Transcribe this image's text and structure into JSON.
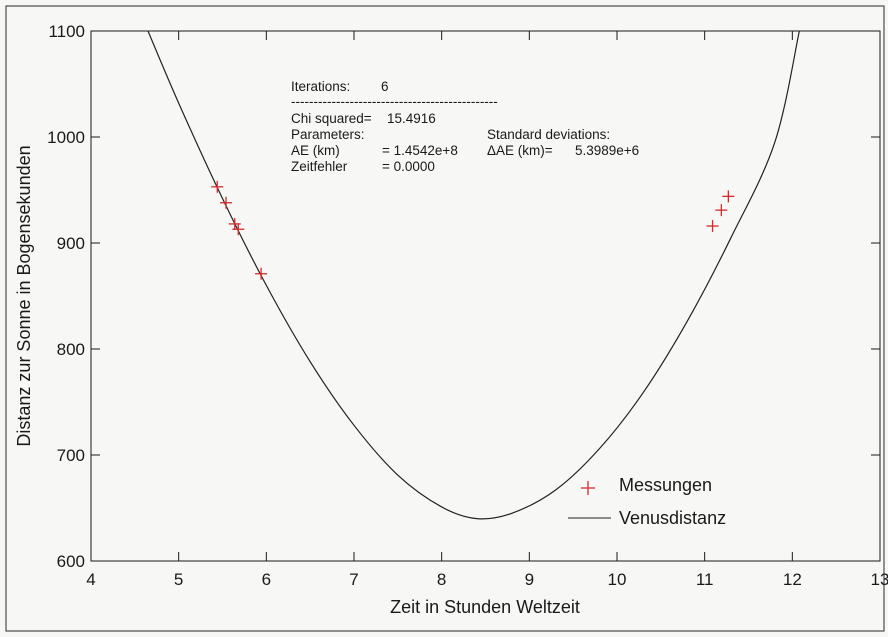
{
  "chart_data": {
    "type": "scatter",
    "xlabel": "Zeit in Stunden Weltzeit",
    "ylabel": "Distanz zur Sonne in Bogensekunden",
    "xlim": [
      4,
      13
    ],
    "ylim": [
      600,
      1100
    ],
    "x_ticks": [
      4,
      5,
      6,
      7,
      8,
      9,
      10,
      11,
      12,
      13
    ],
    "y_ticks": [
      600,
      700,
      800,
      900,
      1000,
      1100
    ],
    "grid": false,
    "legend_position": "bottom-right",
    "series": [
      {
        "name": "Messungen",
        "kind": "scatter",
        "marker": "plus",
        "color": "#d62a2a",
        "points": [
          {
            "x": 5.44,
            "y": 953
          },
          {
            "x": 5.54,
            "y": 938
          },
          {
            "x": 5.64,
            "y": 918
          },
          {
            "x": 5.68,
            "y": 913
          },
          {
            "x": 5.94,
            "y": 871
          },
          {
            "x": 11.09,
            "y": 916
          },
          {
            "x": 11.19,
            "y": 931
          },
          {
            "x": 11.27,
            "y": 944
          }
        ]
      },
      {
        "name": "Venusdistanz",
        "kind": "line",
        "color": "#222222",
        "points": [
          {
            "x": 4.65,
            "y": 1100
          },
          {
            "x": 5.0,
            "y": 1032
          },
          {
            "x": 5.5,
            "y": 942
          },
          {
            "x": 6.0,
            "y": 860
          },
          {
            "x": 6.5,
            "y": 788
          },
          {
            "x": 7.0,
            "y": 728
          },
          {
            "x": 7.5,
            "y": 681
          },
          {
            "x": 8.0,
            "y": 651
          },
          {
            "x": 8.4,
            "y": 640
          },
          {
            "x": 8.8,
            "y": 645
          },
          {
            "x": 9.3,
            "y": 667
          },
          {
            "x": 9.8,
            "y": 706
          },
          {
            "x": 10.3,
            "y": 759
          },
          {
            "x": 10.8,
            "y": 826
          },
          {
            "x": 11.3,
            "y": 905
          },
          {
            "x": 11.8,
            "y": 995
          },
          {
            "x": 12.08,
            "y": 1100
          }
        ]
      }
    ],
    "annotations": {
      "iterations_label": "Iterations:",
      "iterations_value": "6",
      "divider": "----------------------------------------------",
      "chi_label": "Chi squared=",
      "chi_value": "15.4916",
      "parameters_label": "Parameters:",
      "std_label": "Standard deviations:",
      "ae_label": "AE (km)",
      "ae_value": "= 1.4542e+8",
      "dae_label": "ΔAE (km)=",
      "dae_value": "5.3989e+6",
      "zeit_label": "Zeitfehler",
      "zeit_value": "= 0.0000"
    }
  }
}
